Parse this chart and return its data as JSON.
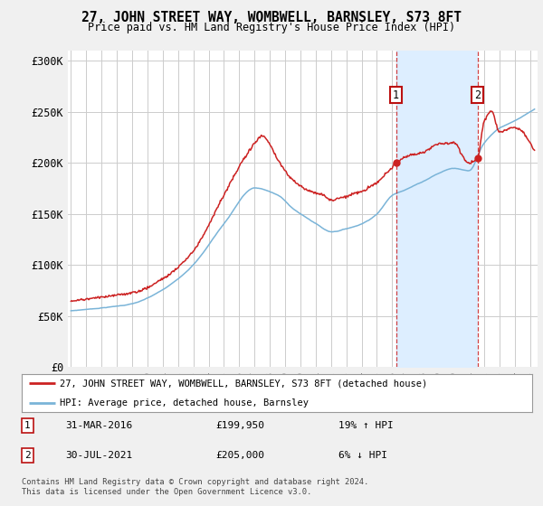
{
  "title": "27, JOHN STREET WAY, WOMBWELL, BARNSLEY, S73 8FT",
  "subtitle": "Price paid vs. HM Land Registry's House Price Index (HPI)",
  "ylim": [
    0,
    310000
  ],
  "yticks": [
    0,
    50000,
    100000,
    150000,
    200000,
    250000,
    300000
  ],
  "ytick_labels": [
    "£0",
    "£50K",
    "£100K",
    "£150K",
    "£200K",
    "£250K",
    "£300K"
  ],
  "background_color": "#f0f0f0",
  "plot_bg_color": "#ffffff",
  "grid_color": "#cccccc",
  "hpi_color": "#7ab4d8",
  "price_color": "#cc2222",
  "shade_color": "#ddeeff",
  "marker1_date": 2016.25,
  "marker1_price": 199950,
  "marker2_date": 2021.58,
  "marker2_price": 205000,
  "legend_line1": "27, JOHN STREET WAY, WOMBWELL, BARNSLEY, S73 8FT (detached house)",
  "legend_line2": "HPI: Average price, detached house, Barnsley",
  "info1_date": "31-MAR-2016",
  "info1_amount": "£199,950",
  "info1_hpi": "19% ↑ HPI",
  "info2_date": "30-JUL-2021",
  "info2_amount": "£205,000",
  "info2_hpi": "6% ↓ HPI",
  "footer": "Contains HM Land Registry data © Crown copyright and database right 2024.\nThis data is licensed under the Open Government Licence v3.0.",
  "xmin": 1994.8,
  "xmax": 2025.5
}
